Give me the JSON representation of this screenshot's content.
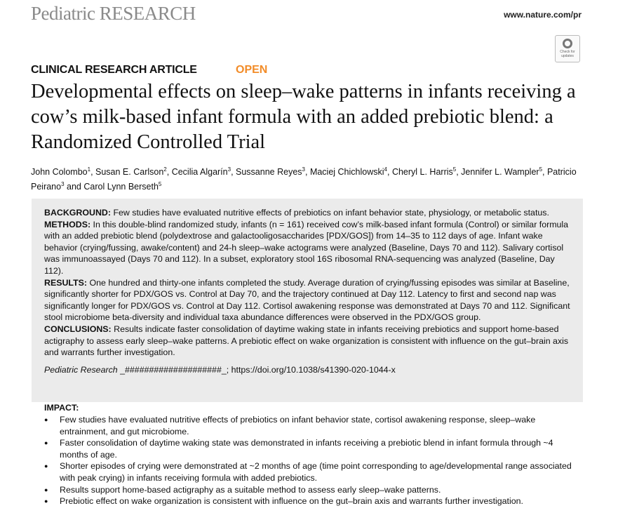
{
  "header": {
    "journal_name": "Pediatric RESEARCH",
    "url": "www.nature.com/pr",
    "badge": "Check for updates"
  },
  "article_type": "CLINICAL RESEARCH ARTICLE",
  "access": "OPEN",
  "title": "Developmental effects on sleep–wake patterns in infants receiving a cow’s milk-based infant formula with an added prebiotic blend: a Randomized Controlled Trial",
  "authors": [
    {
      "name": "John Colombo",
      "aff": "1"
    },
    {
      "name": "Susan E. Carlson",
      "aff": "2"
    },
    {
      "name": "Cecilia Algarín",
      "aff": "3"
    },
    {
      "name": "Sussanne Reyes",
      "aff": "3"
    },
    {
      "name": "Maciej Chichlowski",
      "aff": "4"
    },
    {
      "name": "Cheryl L. Harris",
      "aff": "5"
    },
    {
      "name": "Jennifer L. Wampler",
      "aff": "5"
    },
    {
      "name": "Patricio Peirano",
      "aff": "3"
    },
    {
      "name": "Carol Lynn Berseth",
      "aff": "5"
    }
  ],
  "abstract": {
    "background_label": "BACKGROUND:",
    "background": " Few studies have evaluated nutritive effects of prebiotics on infant behavior state, physiology, or metabolic status.",
    "methods_label": "METHODS:",
    "methods": " In this double-blind randomized study, infants (n = 161) received cow’s milk-based infant formula (Control) or similar formula with an added prebiotic blend (polydextrose and galactooligosaccharides [PDX/GOS]) from 14–35 to 112 days of age. Infant wake behavior (crying/fussing, awake/content) and 24-h sleep–wake actograms were analyzed (Baseline, Days 70 and 112). Salivary cortisol was immunoassayed (Days 70 and 112). In a subset, exploratory stool 16S ribosomal RNA-sequencing was analyzed (Baseline, Day 112).",
    "results_label": "RESULTS:",
    "results": " One hundred and thirty-one infants completed the study. Average duration of crying/fussing episodes was similar at Baseline, significantly shorter for PDX/GOS vs. Control at Day 70, and the trajectory continued at Day 112. Latency to first and second nap was significantly longer for PDX/GOS vs. Control at Day 112. Cortisol awakening response was demonstrated at Days 70 and 112. Significant stool microbiome beta-diversity and individual taxa abundance differences were observed in the PDX/GOS group.",
    "conclusions_label": "CONCLUSIONS:",
    "conclusions": " Results indicate faster consolidation of daytime waking state in infants receiving prebiotics and support home-based actigraphy to assess early sleep–wake patterns. A prebiotic effect on wake organization is consistent with influence on the gut–brain axis and warrants further investigation.",
    "cite_journal": "Pediatric Research",
    "cite_rest": " _####################_;  https://doi.org/10.1038/s41390-020-1044-x"
  },
  "impact": {
    "label": "IMPACT:",
    "items": [
      "Few studies have evaluated nutritive effects of prebiotics on infant behavior state, cortisol awakening response, sleep–wake entrainment, and gut microbiome.",
      "Faster consolidation of daytime waking state was demonstrated in infants receiving a prebiotic blend in infant formula through ~4 months of age.",
      "Shorter episodes of crying were demonstrated at ~2 months of age (time point corresponding to age/developmental range associated with peak crying) in infants receiving formula with added prebiotics.",
      "Results support home-based actigraphy as a suitable method to assess early sleep–wake patterns.",
      "Prebiotic effect on wake organization is consistent with influence on the gut–brain axis and warrants further investigation."
    ]
  },
  "colors": {
    "open": "#f28c28",
    "abstract_bg": "#ebebeb",
    "journal": "#8a8a8a"
  }
}
